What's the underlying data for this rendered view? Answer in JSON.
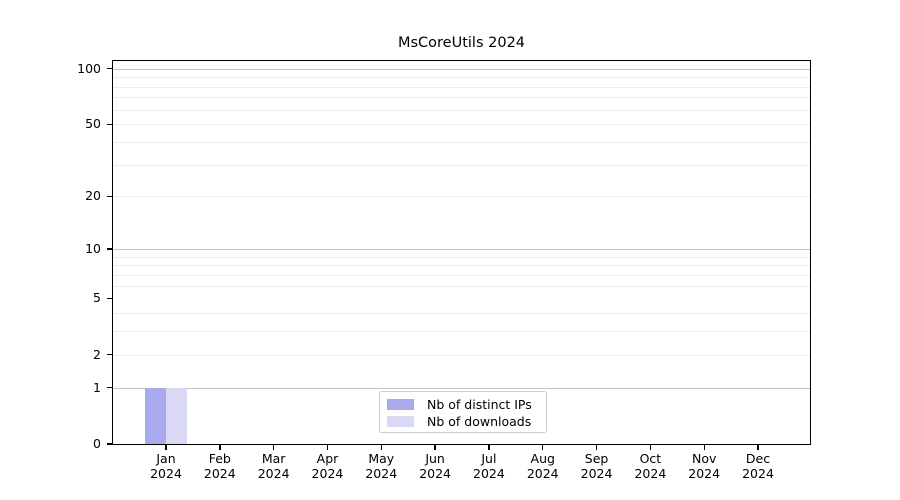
{
  "chart_data": {
    "type": "bar",
    "title": "MsCoreUtils 2024",
    "categories": [
      {
        "label": "Jan",
        "sub": "2024"
      },
      {
        "label": "Feb",
        "sub": "2024"
      },
      {
        "label": "Mar",
        "sub": "2024"
      },
      {
        "label": "Apr",
        "sub": "2024"
      },
      {
        "label": "May",
        "sub": "2024"
      },
      {
        "label": "Jun",
        "sub": "2024"
      },
      {
        "label": "Jul",
        "sub": "2024"
      },
      {
        "label": "Aug",
        "sub": "2024"
      },
      {
        "label": "Sep",
        "sub": "2024"
      },
      {
        "label": "Oct",
        "sub": "2024"
      },
      {
        "label": "Nov",
        "sub": "2024"
      },
      {
        "label": "Dec",
        "sub": "2024"
      }
    ],
    "series": [
      {
        "name": "Nb of distinct IPs",
        "color": "#a9a9ee",
        "values": [
          1,
          0,
          0,
          0,
          0,
          0,
          0,
          0,
          0,
          0,
          0,
          0
        ]
      },
      {
        "name": "Nb of downloads",
        "color": "#d9d9f6",
        "values": [
          1,
          0,
          0,
          0,
          0,
          0,
          0,
          0,
          0,
          0,
          0,
          0
        ]
      }
    ],
    "yscale": "log1p",
    "ylim": [
      0,
      110
    ],
    "y_major_ticks": [
      0,
      1,
      2,
      5,
      10,
      20,
      50,
      100
    ],
    "grid_decade_lines": [
      1,
      10,
      100
    ],
    "grid_minor_lines": [
      2,
      3,
      4,
      6,
      7,
      8,
      9,
      20,
      30,
      40,
      50,
      60,
      70,
      80,
      90
    ],
    "grid": true,
    "legend_position": "bottom-center",
    "colors": {
      "decade_grid": "#c4c4c4",
      "minor_grid": "#ececec",
      "axis": "#000000",
      "text": "#000000",
      "background": "#ffffff"
    }
  }
}
